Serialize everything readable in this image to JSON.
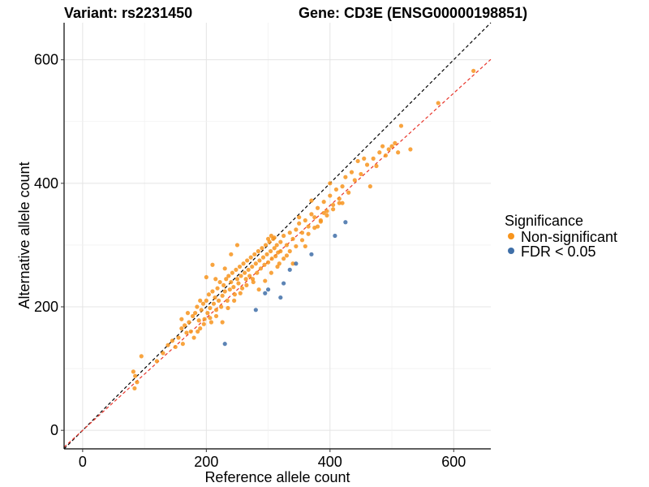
{
  "chart_data": {
    "type": "scatter",
    "title_left": "Variant: rs2231450",
    "title_right": "Gene: CD3E (ENSG00000198851)",
    "xlabel": "Reference allele count",
    "ylabel": "Alternative allele count",
    "xlim": [
      -30,
      660
    ],
    "ylim": [
      -30,
      660
    ],
    "xticks": [
      0,
      200,
      400,
      600
    ],
    "yticks": [
      0,
      200,
      400,
      600
    ],
    "grid": true,
    "legend": {
      "title": "Significance",
      "position": "right",
      "entries": [
        {
          "label": "Non-significant",
          "color": "#F7941D"
        },
        {
          "label": "FDR < 0.05",
          "color": "#3F6FA8"
        }
      ]
    },
    "reference_lines": [
      {
        "name": "y = x",
        "color": "#000000",
        "slope": 1.0,
        "intercept": 0
      },
      {
        "name": "fit",
        "color": "#E8342A",
        "slope": 0.91,
        "intercept": 0
      }
    ],
    "series": [
      {
        "name": "Non-significant",
        "color": "#F7941D",
        "points": [
          [
            82,
            95
          ],
          [
            85,
            88
          ],
          [
            88,
            78
          ],
          [
            84,
            68
          ],
          [
            95,
            120
          ],
          [
            120,
            112
          ],
          [
            130,
            125
          ],
          [
            138,
            138
          ],
          [
            145,
            145
          ],
          [
            150,
            135
          ],
          [
            155,
            150
          ],
          [
            160,
            165
          ],
          [
            162,
            140
          ],
          [
            165,
            170
          ],
          [
            168,
            158
          ],
          [
            172,
            175
          ],
          [
            175,
            160
          ],
          [
            178,
            185
          ],
          [
            180,
            150
          ],
          [
            182,
            190
          ],
          [
            185,
            200
          ],
          [
            188,
            178
          ],
          [
            190,
            165
          ],
          [
            192,
            195
          ],
          [
            195,
            205
          ],
          [
            197,
            180
          ],
          [
            200,
            210
          ],
          [
            202,
            190
          ],
          [
            204,
            220
          ],
          [
            206,
            198
          ],
          [
            208,
            175
          ],
          [
            210,
            225
          ],
          [
            212,
            205
          ],
          [
            214,
            215
          ],
          [
            216,
            185
          ],
          [
            218,
            230
          ],
          [
            220,
            210
          ],
          [
            222,
            240
          ],
          [
            224,
            200
          ],
          [
            226,
            218
          ],
          [
            228,
            235
          ],
          [
            230,
            225
          ],
          [
            232,
            245
          ],
          [
            234,
            210
          ],
          [
            236,
            250
          ],
          [
            238,
            228
          ],
          [
            240,
            240
          ],
          [
            242,
            255
          ],
          [
            244,
            232
          ],
          [
            246,
            220
          ],
          [
            248,
            260
          ],
          [
            250,
            245
          ],
          [
            252,
            238
          ],
          [
            254,
            265
          ],
          [
            256,
            250
          ],
          [
            258,
            230
          ],
          [
            260,
            270
          ],
          [
            262,
            255
          ],
          [
            264,
            245
          ],
          [
            266,
            275
          ],
          [
            268,
            260
          ],
          [
            270,
            250
          ],
          [
            272,
            280
          ],
          [
            274,
            265
          ],
          [
            276,
            240
          ],
          [
            278,
            285
          ],
          [
            280,
            270
          ],
          [
            282,
            255
          ],
          [
            284,
            290
          ],
          [
            286,
            275
          ],
          [
            288,
            262
          ],
          [
            290,
            295
          ],
          [
            292,
            280
          ],
          [
            294,
            268
          ],
          [
            296,
            300
          ],
          [
            298,
            285
          ],
          [
            300,
            272
          ],
          [
            302,
            305
          ],
          [
            304,
            290
          ],
          [
            306,
            278
          ],
          [
            308,
            310
          ],
          [
            310,
            295
          ],
          [
            312,
            282
          ],
          [
            314,
            300
          ],
          [
            316,
            288
          ],
          [
            318,
            270
          ],
          [
            320,
            305
          ],
          [
            325,
            315
          ],
          [
            330,
            300
          ],
          [
            335,
            320
          ],
          [
            340,
            310
          ],
          [
            345,
            325
          ],
          [
            350,
            335
          ],
          [
            355,
            320
          ],
          [
            360,
            340
          ],
          [
            365,
            330
          ],
          [
            370,
            350
          ],
          [
            375,
            345
          ],
          [
            380,
            360
          ],
          [
            385,
            340
          ],
          [
            390,
            370
          ],
          [
            395,
            355
          ],
          [
            400,
            380
          ],
          [
            405,
            365
          ],
          [
            410,
            390
          ],
          [
            415,
            375
          ],
          [
            420,
            395
          ],
          [
            425,
            410
          ],
          [
            430,
            385
          ],
          [
            440,
            405
          ],
          [
            450,
            415
          ],
          [
            460,
            430
          ],
          [
            470,
            440
          ],
          [
            480,
            450
          ],
          [
            490,
            445
          ],
          [
            500,
            460
          ],
          [
            510,
            450
          ],
          [
            515,
            493
          ],
          [
            530,
            455
          ],
          [
            575,
            530
          ],
          [
            632,
            582
          ],
          [
            200,
            248
          ],
          [
            210,
            268
          ],
          [
            240,
            285
          ],
          [
            250,
            300
          ],
          [
            160,
            180
          ],
          [
            170,
            190
          ],
          [
            190,
            210
          ],
          [
            215,
            245
          ],
          [
            230,
            262
          ],
          [
            186,
            160
          ],
          [
            196,
            172
          ],
          [
            206,
            182
          ],
          [
            216,
            195
          ],
          [
            226,
            175
          ],
          [
            235,
            198
          ],
          [
            245,
            210
          ],
          [
            255,
            222
          ],
          [
            265,
            235
          ],
          [
            275,
            245
          ],
          [
            285,
            228
          ],
          [
            295,
            242
          ],
          [
            305,
            255
          ],
          [
            315,
            265
          ],
          [
            325,
            278
          ],
          [
            335,
            290
          ],
          [
            345,
            298
          ],
          [
            355,
            308
          ],
          [
            365,
            318
          ],
          [
            375,
            328
          ],
          [
            385,
            338
          ],
          [
            395,
            348
          ],
          [
            405,
            358
          ],
          [
            415,
            368
          ],
          [
            300,
            310
          ],
          [
            305,
            315
          ],
          [
            310,
            312
          ],
          [
            320,
            290
          ],
          [
            330,
            283
          ],
          [
            340,
            270
          ],
          [
            350,
            345
          ],
          [
            360,
            298
          ],
          [
            370,
            372
          ],
          [
            380,
            330
          ],
          [
            390,
            352
          ],
          [
            400,
            400
          ],
          [
            420,
            368
          ],
          [
            435,
            418
          ],
          [
            445,
            436
          ],
          [
            455,
            440
          ],
          [
            465,
            395
          ],
          [
            475,
            428
          ],
          [
            485,
            460
          ],
          [
            495,
            455
          ],
          [
            505,
            465
          ]
        ]
      },
      {
        "name": "FDR < 0.05",
        "color": "#3F6FA8",
        "points": [
          [
            230,
            140
          ],
          [
            280,
            195
          ],
          [
            295,
            222
          ],
          [
            300,
            228
          ],
          [
            320,
            215
          ],
          [
            325,
            238
          ],
          [
            335,
            260
          ],
          [
            345,
            270
          ],
          [
            370,
            285
          ],
          [
            408,
            315
          ],
          [
            425,
            337
          ]
        ]
      }
    ]
  }
}
